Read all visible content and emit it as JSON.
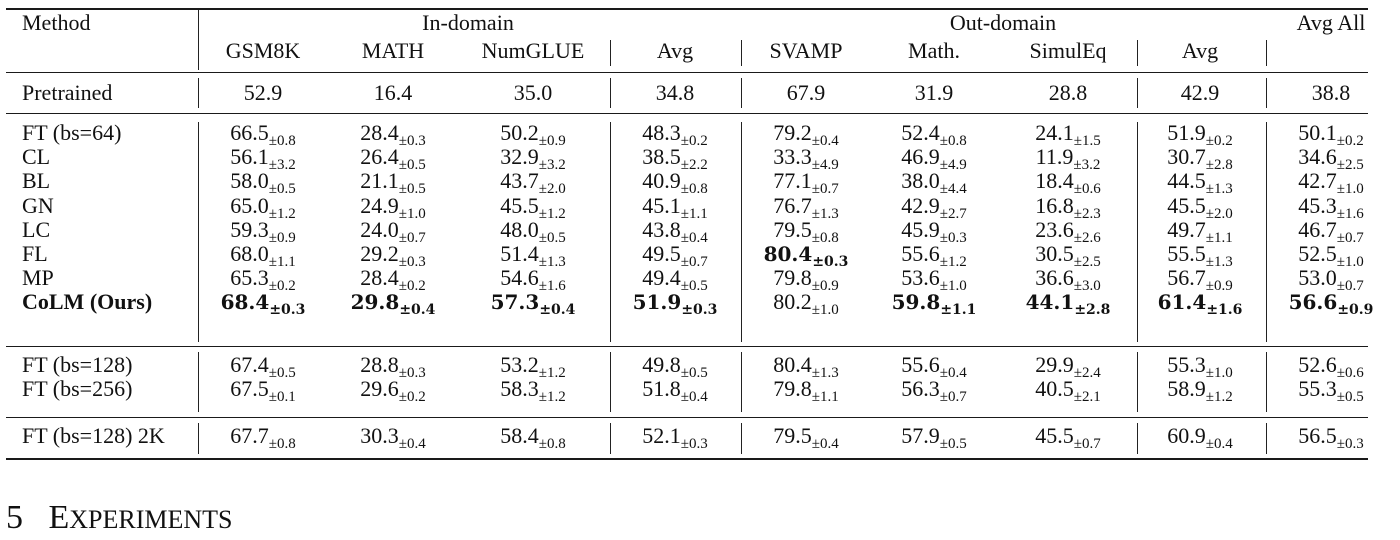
{
  "table": {
    "group_headers": {
      "method": "Method",
      "in_domain": "In-domain",
      "out_domain": "Out-domain",
      "avg_all": "Avg All"
    },
    "columns": [
      "GSM8K",
      "MATH",
      "NumGLUE",
      "Avg",
      "SVAMP",
      "Math.",
      "SimulEq",
      "Avg"
    ],
    "pretrained": {
      "method": "Pretrained",
      "values": [
        "52.9",
        "16.4",
        "35.0",
        "34.8",
        "67.9",
        "31.9",
        "28.8",
        "42.9",
        "38.8"
      ]
    },
    "groups": [
      [
        {
          "method": "FT (bs=64)",
          "bold": false,
          "cells": [
            [
              "66.5",
              "±0.8"
            ],
            [
              "28.4",
              "±0.3"
            ],
            [
              "50.2",
              "±0.9"
            ],
            [
              "48.3",
              "±0.2"
            ],
            [
              "79.2",
              "±0.4"
            ],
            [
              "52.4",
              "±0.8"
            ],
            [
              "24.1",
              "±1.5"
            ],
            [
              "51.9",
              "±0.2"
            ],
            [
              "50.1",
              "±0.2"
            ]
          ]
        },
        {
          "method": "CL",
          "bold": false,
          "cells": [
            [
              "56.1",
              "±3.2"
            ],
            [
              "26.4",
              "±0.5"
            ],
            [
              "32.9",
              "±3.2"
            ],
            [
              "38.5",
              "±2.2"
            ],
            [
              "33.3",
              "±4.9"
            ],
            [
              "46.9",
              "±4.9"
            ],
            [
              "11.9",
              "±3.2"
            ],
            [
              "30.7",
              "±2.8"
            ],
            [
              "34.6",
              "±2.5"
            ]
          ]
        },
        {
          "method": "BL",
          "bold": false,
          "cells": [
            [
              "58.0",
              "±0.5"
            ],
            [
              "21.1",
              "±0.5"
            ],
            [
              "43.7",
              "±2.0"
            ],
            [
              "40.9",
              "±0.8"
            ],
            [
              "77.1",
              "±0.7"
            ],
            [
              "38.0",
              "±4.4"
            ],
            [
              "18.4",
              "±0.6"
            ],
            [
              "44.5",
              "±1.3"
            ],
            [
              "42.7",
              "±1.0"
            ]
          ]
        },
        {
          "method": "GN",
          "bold": false,
          "cells": [
            [
              "65.0",
              "±1.2"
            ],
            [
              "24.9",
              "±1.0"
            ],
            [
              "45.5",
              "±1.2"
            ],
            [
              "45.1",
              "±1.1"
            ],
            [
              "76.7",
              "±1.3"
            ],
            [
              "42.9",
              "±2.7"
            ],
            [
              "16.8",
              "±2.3"
            ],
            [
              "45.5",
              "±2.0"
            ],
            [
              "45.3",
              "±1.6"
            ]
          ]
        },
        {
          "method": "LC",
          "bold": false,
          "cells": [
            [
              "59.3",
              "±0.9"
            ],
            [
              "24.0",
              "±0.7"
            ],
            [
              "48.0",
              "±0.5"
            ],
            [
              "43.8",
              "±0.4"
            ],
            [
              "79.5",
              "±0.8"
            ],
            [
              "45.9",
              "±0.3"
            ],
            [
              "23.6",
              "±2.6"
            ],
            [
              "49.7",
              "±1.1"
            ],
            [
              "46.7",
              "±0.7"
            ]
          ]
        },
        {
          "method": "FL",
          "bold": false,
          "bold_cells": [
            4
          ],
          "cells": [
            [
              "68.0",
              "±1.1"
            ],
            [
              "29.2",
              "±0.3"
            ],
            [
              "51.4",
              "±1.3"
            ],
            [
              "49.5",
              "±0.7"
            ],
            [
              "80.4",
              "±0.3"
            ],
            [
              "55.6",
              "±1.2"
            ],
            [
              "30.5",
              "±2.5"
            ],
            [
              "55.5",
              "±1.3"
            ],
            [
              "52.5",
              "±1.0"
            ]
          ]
        },
        {
          "method": "MP",
          "bold": false,
          "cells": [
            [
              "65.3",
              "±0.2"
            ],
            [
              "28.4",
              "±0.2"
            ],
            [
              "54.6",
              "±1.6"
            ],
            [
              "49.4",
              "±0.5"
            ],
            [
              "79.8",
              "±0.9"
            ],
            [
              "53.6",
              "±1.0"
            ],
            [
              "36.6",
              "±3.0"
            ],
            [
              "56.7",
              "±0.9"
            ],
            [
              "53.0",
              "±0.7"
            ]
          ]
        },
        {
          "method": "CoLM (Ours)",
          "bold": true,
          "bold_cells": [
            0,
            1,
            2,
            3,
            5,
            6,
            7,
            8
          ],
          "cells": [
            [
              "68.4",
              "±0.3"
            ],
            [
              "29.8",
              "±0.4"
            ],
            [
              "57.3",
              "±0.4"
            ],
            [
              "51.9",
              "±0.3"
            ],
            [
              "80.2",
              "±1.0"
            ],
            [
              "59.8",
              "±1.1"
            ],
            [
              "44.1",
              "±2.8"
            ],
            [
              "61.4",
              "±1.6"
            ],
            [
              "56.6",
              "±0.9"
            ]
          ]
        }
      ],
      [
        {
          "method": "FT (bs=128)",
          "bold": false,
          "cells": [
            [
              "67.4",
              "±0.5"
            ],
            [
              "28.8",
              "±0.3"
            ],
            [
              "53.2",
              "±1.2"
            ],
            [
              "49.8",
              "±0.5"
            ],
            [
              "80.4",
              "±1.3"
            ],
            [
              "55.6",
              "±0.4"
            ],
            [
              "29.9",
              "±2.4"
            ],
            [
              "55.3",
              "±1.0"
            ],
            [
              "52.6",
              "±0.6"
            ]
          ]
        },
        {
          "method": "FT (bs=256)",
          "bold": false,
          "cells": [
            [
              "67.5",
              "±0.1"
            ],
            [
              "29.6",
              "±0.2"
            ],
            [
              "58.3",
              "±1.2"
            ],
            [
              "51.8",
              "±0.4"
            ],
            [
              "79.8",
              "±1.1"
            ],
            [
              "56.3",
              "±0.7"
            ],
            [
              "40.5",
              "±2.1"
            ],
            [
              "58.9",
              "±1.2"
            ],
            [
              "55.3",
              "±0.5"
            ]
          ]
        }
      ],
      [
        {
          "method": "FT (bs=128) 2K",
          "bold": false,
          "cells": [
            [
              "67.7",
              "±0.8"
            ],
            [
              "30.3",
              "±0.4"
            ],
            [
              "58.4",
              "±0.8"
            ],
            [
              "52.1",
              "±0.3"
            ],
            [
              "79.5",
              "±0.4"
            ],
            [
              "57.9",
              "±0.5"
            ],
            [
              "45.5",
              "±0.7"
            ],
            [
              "60.9",
              "±0.4"
            ],
            [
              "56.5",
              "±0.3"
            ]
          ]
        }
      ]
    ]
  },
  "section": {
    "number": "5",
    "title_first": "E",
    "title_rest": "XPERIMENTS"
  }
}
